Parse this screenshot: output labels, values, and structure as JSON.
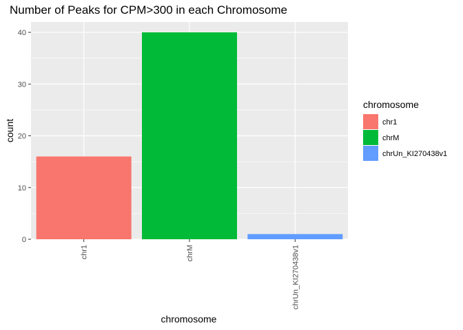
{
  "chart_data": {
    "type": "bar",
    "title": "Number of Peaks for CPM>300 in each Chromosome",
    "xlabel": "chromosome",
    "ylabel": "count",
    "categories": [
      "chr1",
      "chrM",
      "chrUn_KI270438v1"
    ],
    "values": [
      16,
      40,
      1
    ],
    "colors": [
      "#F8766D",
      "#00BA38",
      "#619CFF"
    ],
    "ylim": [
      0,
      42
    ],
    "yticks": [
      0,
      10,
      20,
      30,
      40
    ],
    "grid": true,
    "panel_background": "#EBEBEB",
    "legend": {
      "title": "chromosome",
      "placement": "right",
      "entries": [
        "chr1",
        "chrM",
        "chrUn_KI270438v1"
      ]
    }
  }
}
